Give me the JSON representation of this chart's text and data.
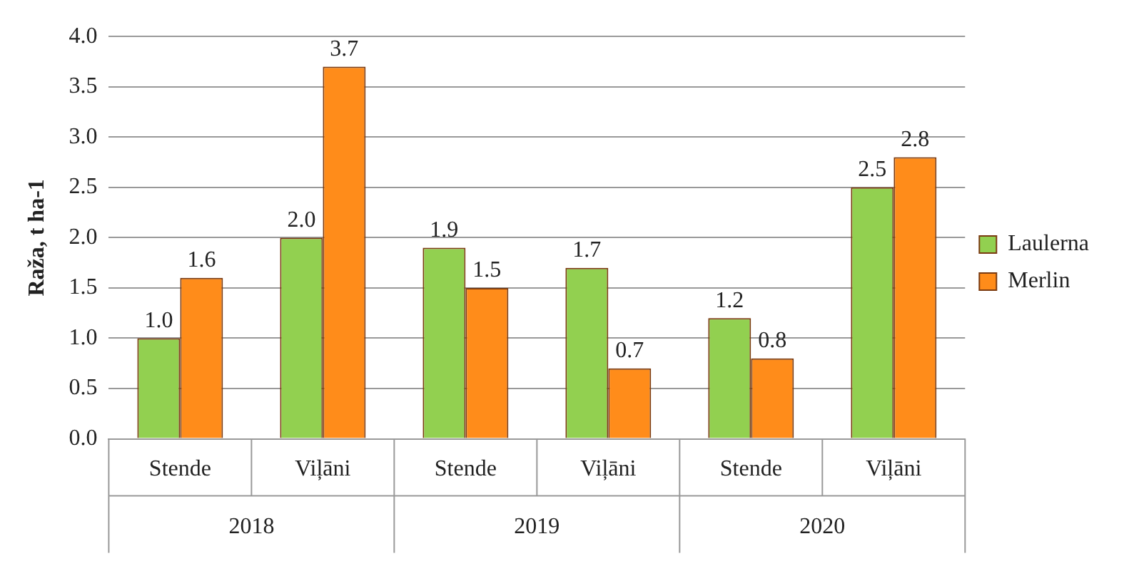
{
  "chart_data": {
    "type": "bar",
    "ylabel": "Raža, t ha-1",
    "categories": [
      "Stende",
      "Viļāni",
      "Stende",
      "Viļāni",
      "Stende",
      "Viļāni"
    ],
    "annotations": [
      "2018",
      "2019",
      "2020"
    ],
    "series": [
      {
        "name": "Laulerna",
        "color": "#92d050",
        "values": [
          1.0,
          2.0,
          1.9,
          1.7,
          1.2,
          2.5
        ],
        "value_labels": [
          "1.0",
          "2.0",
          "1.9",
          "1.7",
          "1.2",
          "2.5"
        ]
      },
      {
        "name": "Merlin",
        "color": "#ff8c1a",
        "values": [
          1.6,
          3.7,
          1.5,
          0.7,
          0.8,
          2.8
        ],
        "value_labels": [
          "1.6",
          "3.7",
          "1.5",
          "0.7",
          "0.8",
          "2.8"
        ]
      }
    ],
    "ylim": [
      0,
      4
    ],
    "yticks": [
      {
        "value": 0,
        "label": "0.0"
      },
      0.5,
      {
        "value": 1,
        "label": "1.0"
      },
      1.5,
      {
        "value": 2,
        "label": "2.0"
      },
      2.5,
      {
        "value": 3,
        "label": "3.0"
      },
      3.5,
      {
        "value": 4,
        "label": "4.0"
      }
    ],
    "grid": "y",
    "legend": "right"
  }
}
